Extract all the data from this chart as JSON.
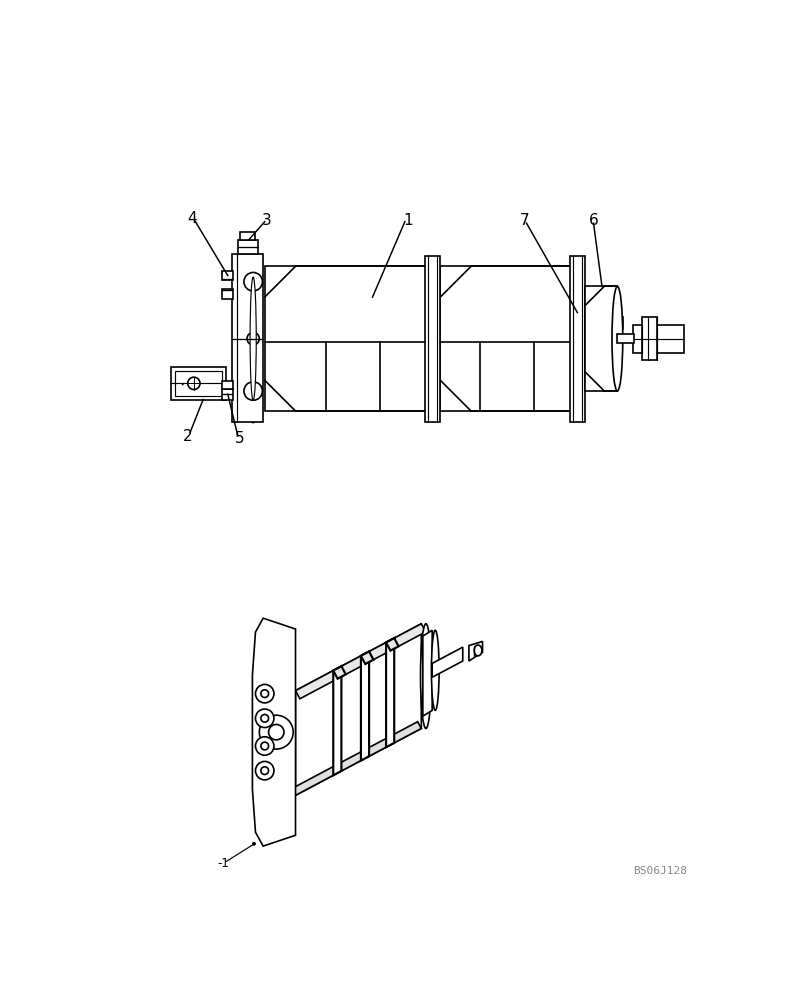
{
  "bg_color": "#ffffff",
  "lc": "#000000",
  "lw": 1.2,
  "fig_w": 8.08,
  "fig_h": 10.0,
  "watermark": "BS06J128"
}
